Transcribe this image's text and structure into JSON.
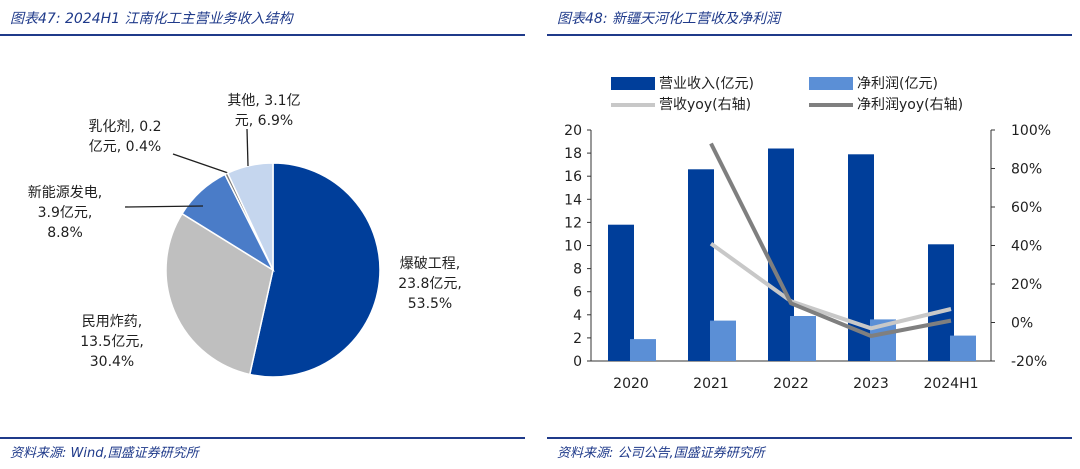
{
  "left": {
    "title": "图表47:  2024H1 江南化工主营业务收入结构",
    "source": "资料来源:  Wind,国盛证券研究所"
  },
  "right": {
    "title": "图表48:  新疆天河化工营收及净利润",
    "source": "资料来源:  公司公告,国盛证券研究所"
  },
  "chart_data": [
    {
      "type": "pie",
      "title": "2024H1 江南化工主营业务收入结构",
      "slices": [
        {
          "name": "爆破工程",
          "value": 23.8,
          "percent": 53.5,
          "color": "#003e9a",
          "label_lines": [
            "爆破工程,",
            "23.8亿元,",
            "53.5%"
          ]
        },
        {
          "name": "民用炸药",
          "value": 13.5,
          "percent": 30.4,
          "color": "#bfbfbf",
          "label_lines": [
            "民用炸药,",
            "13.5亿元,",
            "30.4%"
          ]
        },
        {
          "name": "新能源发电",
          "value": 3.9,
          "percent": 8.8,
          "color": "#4a7cc8",
          "label_lines": [
            "新能源发电,",
            "3.9亿元,",
            "8.8%"
          ]
        },
        {
          "name": "乳化剂",
          "value": 0.2,
          "percent": 0.4,
          "color": "#7f7f7f",
          "label_lines": [
            "乳化剂, 0.2",
            "亿元, 0.4%"
          ]
        },
        {
          "name": "其他",
          "value": 3.1,
          "percent": 6.9,
          "color": "#c5d6ee",
          "label_lines": [
            "其他, 3.1亿",
            "元, 6.9%"
          ]
        }
      ]
    },
    {
      "type": "bar",
      "title": "新疆天河化工营收及净利润",
      "categories": [
        "2020",
        "2021",
        "2022",
        "2023",
        "2024H1"
      ],
      "y_left": {
        "min": 0,
        "max": 20,
        "ticks": [
          "0",
          "2",
          "4",
          "6",
          "8",
          "10",
          "12",
          "14",
          "16",
          "18",
          "20"
        ]
      },
      "y_right": {
        "min": -20,
        "max": 100,
        "ticks": [
          "-20%",
          "0%",
          "20%",
          "40%",
          "60%",
          "80%",
          "100%"
        ]
      },
      "series": [
        {
          "name": "营业收入(亿元)",
          "kind": "bar",
          "axis": "left",
          "color": "#003e9a",
          "values": [
            11.8,
            16.6,
            18.4,
            17.9,
            10.1
          ]
        },
        {
          "name": "净利润(亿元)",
          "kind": "bar",
          "axis": "left",
          "color": "#5b8fd6",
          "values": [
            1.9,
            3.5,
            3.9,
            3.6,
            2.2
          ]
        },
        {
          "name": "营收yoy(右轴)",
          "kind": "line",
          "axis": "right",
          "color": "#c8c8c8",
          "values": [
            null,
            41,
            11,
            -3,
            7
          ]
        },
        {
          "name": "净利润yoy(右轴)",
          "kind": "line",
          "axis": "right",
          "color": "#7f7f7f",
          "values": [
            null,
            93,
            10,
            -7,
            1
          ]
        }
      ],
      "legend_position": "top"
    }
  ]
}
